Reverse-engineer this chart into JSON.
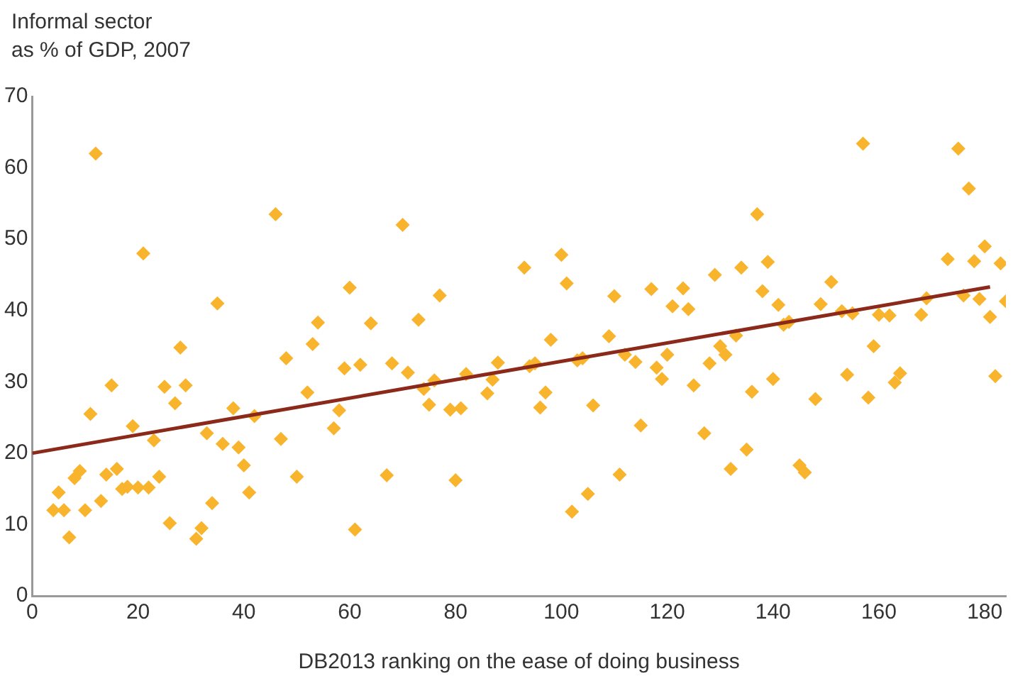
{
  "chart_data": {
    "type": "scatter",
    "ylabel": "Informal sector\nas % of GDP, 2007",
    "xlabel": "DB2013 ranking on the ease of doing business",
    "xlim": [
      0,
      184
    ],
    "xticks": [
      0,
      20,
      40,
      60,
      80,
      100,
      120,
      140,
      160,
      180
    ],
    "ylim": [
      0,
      70
    ],
    "yticks": [
      0,
      10,
      20,
      30,
      40,
      50,
      60,
      70
    ],
    "grid": false,
    "legend": false,
    "marker": "diamond",
    "series": [
      {
        "color": "#f9b42d",
        "x": [
          4,
          5,
          6,
          7,
          8,
          9,
          10,
          11,
          12,
          13,
          14,
          15,
          16,
          17,
          18,
          19,
          20,
          21,
          22,
          23,
          24,
          25,
          26,
          27,
          28,
          29,
          31,
          32,
          33,
          34,
          35,
          36,
          38,
          39,
          40,
          41,
          42,
          46,
          47,
          48,
          50,
          52,
          53,
          54,
          57,
          58,
          59,
          60,
          61,
          62,
          64,
          67,
          68,
          70,
          71,
          73,
          74,
          75,
          76,
          77,
          79,
          80,
          81,
          82,
          86,
          87,
          88,
          93,
          94,
          95,
          96,
          97,
          98,
          100,
          101,
          102,
          103,
          104,
          105,
          106,
          109,
          110,
          111,
          112,
          114,
          115,
          117,
          118,
          119,
          120,
          121,
          123,
          124,
          125,
          127,
          128,
          129,
          130,
          131,
          132,
          133,
          134,
          135,
          136,
          137,
          138,
          139,
          140,
          141,
          142,
          143,
          145,
          146,
          148,
          149,
          151,
          153,
          154,
          155,
          157,
          158,
          159,
          160,
          162,
          163,
          164,
          168,
          169,
          173,
          175,
          176,
          177,
          178,
          179,
          180,
          181,
          182,
          183,
          184
        ],
        "values": [
          12,
          14.5,
          12,
          8.2,
          16.5,
          17.5,
          12,
          25.5,
          62,
          13.3,
          17,
          29.5,
          17.8,
          15,
          15.3,
          23.8,
          15.2,
          48,
          15.2,
          21.8,
          16.7,
          29.3,
          10.2,
          27,
          34.8,
          29.5,
          8,
          9.5,
          22.8,
          13,
          41,
          21.3,
          26.3,
          20.8,
          18.3,
          14.5,
          25.2,
          53.5,
          22,
          33.3,
          16.7,
          28.5,
          35.3,
          38.3,
          23.5,
          26,
          31.9,
          43.2,
          9.3,
          32.4,
          38.2,
          16.9,
          32.6,
          52,
          31.3,
          38.7,
          29,
          26.8,
          30.2,
          42.1,
          26.1,
          16.2,
          26.3,
          31.1,
          28.4,
          30.3,
          32.7,
          46,
          32.2,
          32.6,
          26.4,
          28.5,
          35.9,
          47.8,
          43.8,
          11.8,
          33,
          33.3,
          14.3,
          26.7,
          36.4,
          42,
          17,
          33.8,
          32.8,
          23.9,
          43,
          32,
          30.4,
          33.8,
          40.6,
          43.1,
          40.2,
          29.5,
          22.8,
          32.6,
          45,
          35,
          33.8,
          17.8,
          36.5,
          46,
          20.5,
          28.6,
          53.5,
          42.7,
          46.8,
          30.4,
          40.8,
          38,
          38.4,
          18.3,
          17.3,
          27.6,
          40.9,
          44,
          39.9,
          31,
          39.6,
          63.4,
          27.8,
          35,
          39.4,
          39.3,
          29.9,
          31.2,
          39.4,
          41.7,
          47.2,
          62.7,
          42.1,
          57.1,
          46.9,
          41.6,
          49,
          39.1,
          30.8,
          46.6,
          41.3
        ]
      },
      {
        "type": "line",
        "color": "#8b2a1a",
        "marker": "none",
        "x": [
          0,
          181
        ],
        "values": [
          20,
          43.3
        ]
      }
    ]
  }
}
